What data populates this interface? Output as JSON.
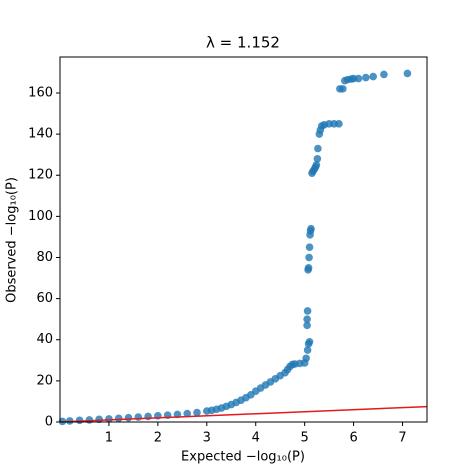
{
  "chart_data": {
    "type": "scatter",
    "title": "λ = 1.152",
    "xlabel": "Expected −log₁₀(P)",
    "ylabel": "Observed −log₁₀(P)",
    "xlim": [
      0,
      7.5
    ],
    "ylim": [
      0,
      177.5
    ],
    "xticks": [
      1,
      2,
      3,
      4,
      5,
      6,
      7
    ],
    "yticks": [
      0,
      20,
      40,
      60,
      80,
      100,
      120,
      140,
      160
    ],
    "series": [
      {
        "color": "#1f77b4",
        "x": [
          0.05,
          0.2,
          0.4,
          0.6,
          0.8,
          1.0,
          1.2,
          1.4,
          1.6,
          1.8,
          2.0,
          2.2,
          2.4,
          2.6,
          2.8,
          3.0,
          3.1,
          3.2,
          3.3,
          3.4,
          3.5,
          3.6,
          3.7,
          3.8,
          3.9,
          4.0,
          4.1,
          4.2,
          4.3,
          4.4,
          4.5,
          4.6,
          4.65,
          4.7,
          4.75,
          4.8,
          4.9,
          5.0,
          5.03,
          5.06,
          5.08,
          5.1,
          5.05,
          5.05,
          5.06,
          5.07,
          5.08,
          5.09,
          5.1,
          5.11,
          5.12,
          5.13,
          5.15,
          5.17,
          5.2,
          5.22,
          5.24,
          5.26,
          5.27,
          5.3,
          5.32,
          5.35,
          5.4,
          5.5,
          5.6,
          5.7,
          5.72,
          5.78,
          5.82,
          5.88,
          5.95,
          6.0,
          6.1,
          6.25,
          6.4,
          6.62,
          7.1
        ],
        "values": [
          0.3,
          0.5,
          0.8,
          1.0,
          1.3,
          1.5,
          1.8,
          2.1,
          2.4,
          2.7,
          3.0,
          3.3,
          3.7,
          4.1,
          4.6,
          5.3,
          5.7,
          6.2,
          6.8,
          7.6,
          8.5,
          9.5,
          10.6,
          11.8,
          13.2,
          15,
          16.5,
          18,
          19.5,
          21,
          22.5,
          24,
          25.5,
          27,
          28,
          28.2,
          28.5,
          28.7,
          31,
          35,
          38,
          39,
          47,
          50,
          54,
          74,
          75,
          80,
          85,
          91,
          93,
          94,
          121,
          122,
          123,
          124,
          125,
          128,
          133,
          140,
          142,
          144,
          144.5,
          145,
          145,
          145,
          162,
          162,
          166,
          166.5,
          166.8,
          167,
          167,
          167.5,
          168,
          169,
          169.5
        ]
      },
      {
        "type": "line",
        "color": "#e41a1c",
        "x": [
          0,
          7.5
        ],
        "values": [
          0,
          7.5
        ]
      }
    ]
  }
}
